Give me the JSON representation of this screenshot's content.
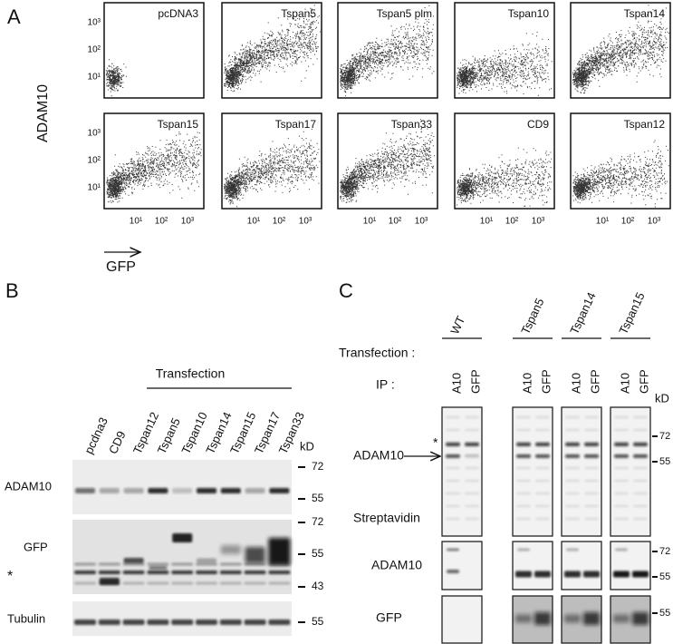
{
  "panel_a": {
    "letter": "A",
    "y_label": "ADAM10",
    "x_label": "GFP",
    "y_ticks": [
      "10³",
      "10²",
      "10¹"
    ],
    "x_ticks": [
      "10¹",
      "10²",
      "10³"
    ],
    "plots": [
      "pcDNA3",
      "Tspan5",
      "Tspan5 plm",
      "Tspan10",
      "Tspan14",
      "Tspan15",
      "Tspan17",
      "Tspan33",
      "CD9",
      "Tspan12"
    ]
  },
  "panel_b": {
    "letter": "B",
    "header": "Transfection",
    "lanes": [
      "pcdna3",
      "CD9",
      "Tspan12",
      "Tspan5",
      "Tspan10",
      "Tspan14",
      "Tspan15",
      "Tspan17",
      "Tspan33"
    ],
    "unit": "kD",
    "blots": [
      {
        "label": "ADAM10",
        "markers": [
          72,
          55
        ]
      },
      {
        "label": "GFP",
        "note": "*",
        "markers": [
          72,
          55,
          43
        ]
      },
      {
        "label": "Tubulin",
        "markers": [
          55
        ]
      }
    ]
  },
  "panel_c": {
    "letter": "C",
    "transfection_label": "Transfection :",
    "ip_label": "IP :",
    "groups": [
      {
        "name": "WT",
        "lanes": [
          "A10",
          "GFP"
        ]
      },
      {
        "name": "Tspan5",
        "lanes": [
          "A10",
          "GFP"
        ]
      },
      {
        "name": "Tspan14",
        "lanes": [
          "A10",
          "GFP"
        ]
      },
      {
        "name": "Tspan15",
        "lanes": [
          "A10",
          "GFP"
        ]
      }
    ],
    "unit": "kD",
    "blots": [
      {
        "label": "ADAM10",
        "note": "*",
        "secondary_label": "Streptavidin",
        "markers": [
          72,
          55
        ]
      },
      {
        "label": "ADAM10",
        "markers": [
          72,
          55
        ]
      },
      {
        "label": "GFP",
        "markers": [
          55
        ]
      }
    ]
  }
}
